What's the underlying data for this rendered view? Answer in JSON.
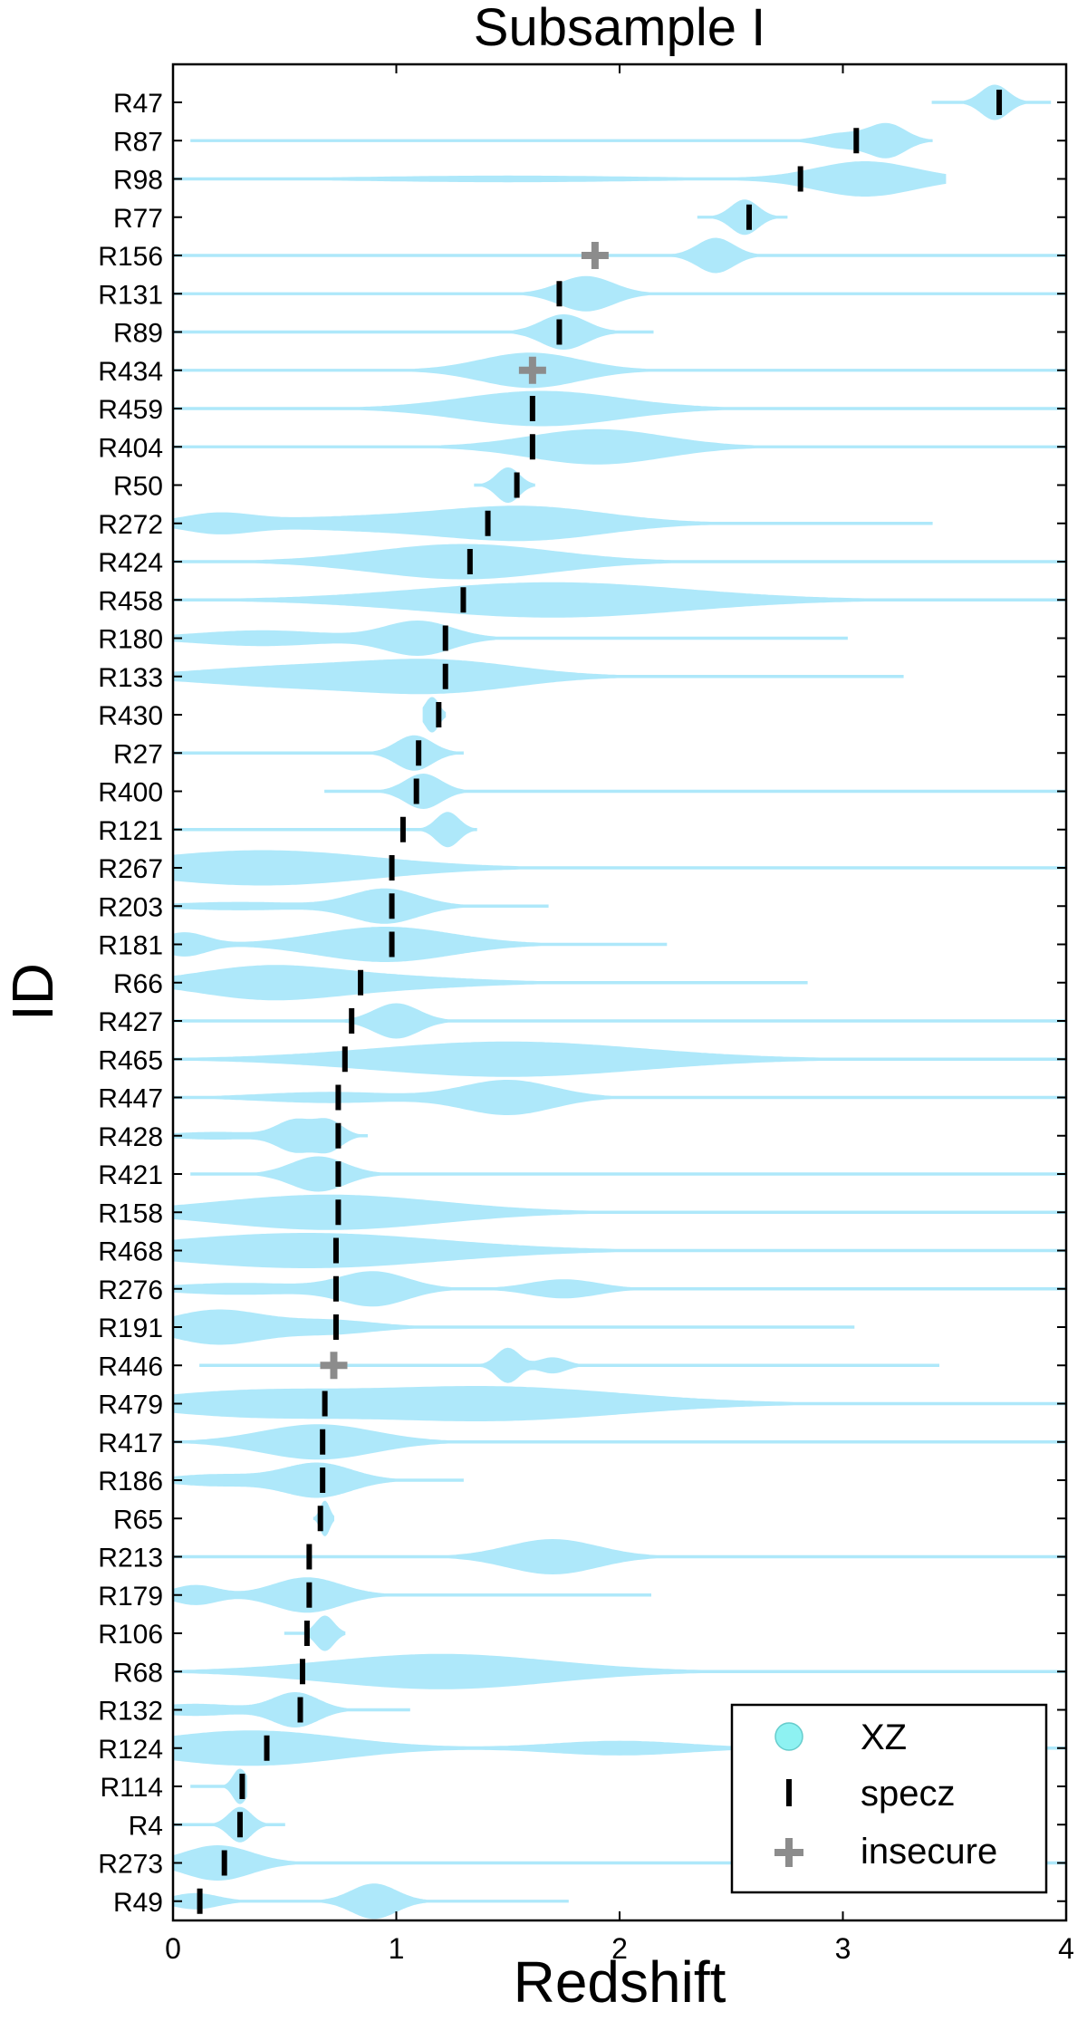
{
  "chart_data": {
    "type": "violin",
    "title": "Subsample I",
    "xlabel": "Redshift",
    "ylabel": "ID",
    "xlim": [
      0,
      4
    ],
    "xticks": [
      0,
      1,
      2,
      3,
      4
    ],
    "grid": false,
    "legend": {
      "placement": "bottom-right",
      "entries": [
        {
          "label": "XZ",
          "marker": "circle",
          "color": "#8ef2f2"
        },
        {
          "label": "specz",
          "marker": "vertical-bar",
          "color": "#000000"
        },
        {
          "label": "insecure",
          "marker": "plus",
          "color": "#8c8c8c"
        }
      ]
    },
    "colors": {
      "violin_fill": "#aee8fa",
      "violin_line": "#aee8fa",
      "specz": "#000000",
      "insecure": "#8c8c8c"
    },
    "objects": [
      {
        "id": "R47",
        "z": 3.7,
        "flag": "specz",
        "range": [
          3.4,
          3.93
        ],
        "bumps": [
          [
            3.68,
            0.06,
            9
          ]
        ]
      },
      {
        "id": "R87",
        "z": 3.06,
        "flag": "specz",
        "range": [
          0.08,
          3.4
        ],
        "bumps": [
          [
            3.2,
            0.08,
            9
          ],
          [
            3.0,
            0.1,
            4
          ]
        ]
      },
      {
        "id": "R98",
        "z": 2.81,
        "flag": "specz",
        "range": [
          0.0,
          3.46
        ],
        "bumps": [
          [
            3.1,
            0.22,
            9
          ],
          [
            1.5,
            0.6,
            1.5
          ]
        ]
      },
      {
        "id": "R77",
        "z": 2.58,
        "flag": "specz",
        "range": [
          2.35,
          2.75
        ],
        "bumps": [
          [
            2.56,
            0.06,
            9
          ]
        ]
      },
      {
        "id": "R156",
        "z": 1.89,
        "flag": "insecure",
        "range": [
          0.0,
          4.0
        ],
        "bumps": [
          [
            2.43,
            0.08,
            9
          ]
        ]
      },
      {
        "id": "R131",
        "z": 1.73,
        "flag": "specz",
        "range": [
          0.0,
          4.0
        ],
        "bumps": [
          [
            1.85,
            0.12,
            10
          ]
        ]
      },
      {
        "id": "R89",
        "z": 1.73,
        "flag": "specz",
        "range": [
          0.0,
          2.15
        ],
        "bumps": [
          [
            1.75,
            0.1,
            9
          ]
        ]
      },
      {
        "id": "R434",
        "z": 1.61,
        "flag": "insecure",
        "range": [
          0.0,
          4.0
        ],
        "bumps": [
          [
            1.6,
            0.22,
            10
          ]
        ]
      },
      {
        "id": "R459",
        "z": 1.61,
        "flag": "specz",
        "range": [
          0.0,
          4.0
        ],
        "bumps": [
          [
            1.65,
            0.35,
            10
          ]
        ]
      },
      {
        "id": "R404",
        "z": 1.61,
        "flag": "specz",
        "range": [
          0.0,
          4.0
        ],
        "bumps": [
          [
            1.9,
            0.3,
            10
          ]
        ]
      },
      {
        "id": "R50",
        "z": 1.54,
        "flag": "specz",
        "range": [
          1.35,
          1.62
        ],
        "bumps": [
          [
            1.5,
            0.05,
            9
          ]
        ]
      },
      {
        "id": "R272",
        "z": 1.41,
        "flag": "specz",
        "range": [
          0.0,
          3.4
        ],
        "bumps": [
          [
            1.6,
            0.35,
            9
          ],
          [
            0.9,
            0.5,
            4
          ],
          [
            0.2,
            0.15,
            5
          ]
        ]
      },
      {
        "id": "R424",
        "z": 1.33,
        "flag": "specz",
        "range": [
          0.0,
          4.0
        ],
        "bumps": [
          [
            1.3,
            0.4,
            10
          ]
        ]
      },
      {
        "id": "R458",
        "z": 1.3,
        "flag": "specz",
        "range": [
          0.0,
          4.0
        ],
        "bumps": [
          [
            1.7,
            0.6,
            10
          ]
        ]
      },
      {
        "id": "R180",
        "z": 1.22,
        "flag": "specz",
        "range": [
          0.0,
          3.02
        ],
        "bumps": [
          [
            1.1,
            0.15,
            9
          ],
          [
            0.4,
            0.3,
            4
          ]
        ]
      },
      {
        "id": "R133",
        "z": 1.22,
        "flag": "specz",
        "range": [
          0.0,
          3.27
        ],
        "bumps": [
          [
            1.2,
            0.35,
            8
          ],
          [
            0.5,
            0.4,
            5
          ]
        ]
      },
      {
        "id": "R430",
        "z": 1.19,
        "flag": "specz",
        "range": [
          1.12,
          1.22
        ],
        "bumps": [
          [
            1.16,
            0.03,
            8
          ]
        ]
      },
      {
        "id": "R27",
        "z": 1.1,
        "flag": "specz",
        "range": [
          0.0,
          1.3
        ],
        "bumps": [
          [
            1.08,
            0.08,
            9
          ]
        ]
      },
      {
        "id": "R400",
        "z": 1.09,
        "flag": "specz",
        "range": [
          0.68,
          4.0
        ],
        "bumps": [
          [
            1.12,
            0.08,
            10
          ]
        ]
      },
      {
        "id": "R121",
        "z": 1.03,
        "flag": "specz",
        "range": [
          0.0,
          1.36
        ],
        "bumps": [
          [
            1.23,
            0.05,
            9
          ]
        ]
      },
      {
        "id": "R267",
        "z": 0.98,
        "flag": "specz",
        "range": [
          0.0,
          4.0
        ],
        "bumps": [
          [
            0.4,
            0.5,
            10
          ]
        ]
      },
      {
        "id": "R203",
        "z": 0.98,
        "flag": "specz",
        "range": [
          0.0,
          1.68
        ],
        "bumps": [
          [
            0.95,
            0.15,
            9
          ],
          [
            0.3,
            0.3,
            2
          ]
        ]
      },
      {
        "id": "R181",
        "z": 0.98,
        "flag": "specz",
        "range": [
          0.0,
          2.21
        ],
        "bumps": [
          [
            0.95,
            0.3,
            9
          ],
          [
            0.05,
            0.1,
            6
          ]
        ]
      },
      {
        "id": "R66",
        "z": 0.84,
        "flag": "specz",
        "range": [
          0.0,
          2.84
        ],
        "bumps": [
          [
            0.4,
            0.3,
            9
          ],
          [
            0.9,
            0.4,
            4
          ]
        ]
      },
      {
        "id": "R427",
        "z": 0.8,
        "flag": "specz",
        "range": [
          0.0,
          4.0
        ],
        "bumps": [
          [
            1.0,
            0.1,
            9
          ]
        ]
      },
      {
        "id": "R465",
        "z": 0.77,
        "flag": "specz",
        "range": [
          0.0,
          4.0
        ],
        "bumps": [
          [
            1.5,
            0.6,
            10
          ]
        ]
      },
      {
        "id": "R447",
        "z": 0.74,
        "flag": "specz",
        "range": [
          0.0,
          4.0
        ],
        "bumps": [
          [
            1.5,
            0.2,
            10
          ],
          [
            0.7,
            0.3,
            3
          ]
        ]
      },
      {
        "id": "R428",
        "z": 0.74,
        "flag": "specz",
        "range": [
          0.0,
          0.87
        ],
        "bumps": [
          [
            0.55,
            0.08,
            9
          ],
          [
            0.7,
            0.06,
            8
          ],
          [
            0.2,
            0.2,
            2
          ]
        ]
      },
      {
        "id": "R421",
        "z": 0.74,
        "flag": "specz",
        "range": [
          0.08,
          4.0
        ],
        "bumps": [
          [
            0.65,
            0.12,
            10
          ]
        ]
      },
      {
        "id": "R158",
        "z": 0.74,
        "flag": "specz",
        "range": [
          0.0,
          4.0
        ],
        "bumps": [
          [
            0.7,
            0.5,
            10
          ]
        ]
      },
      {
        "id": "R468",
        "z": 0.73,
        "flag": "specz",
        "range": [
          0.0,
          4.0
        ],
        "bumps": [
          [
            0.6,
            0.6,
            10
          ]
        ]
      },
      {
        "id": "R276",
        "z": 0.73,
        "flag": "specz",
        "range": [
          0.0,
          4.0
        ],
        "bumps": [
          [
            0.9,
            0.15,
            9
          ],
          [
            1.75,
            0.15,
            5
          ],
          [
            0.3,
            0.3,
            3
          ]
        ]
      },
      {
        "id": "R191",
        "z": 0.73,
        "flag": "specz",
        "range": [
          0.0,
          3.05
        ],
        "bumps": [
          [
            0.2,
            0.2,
            10
          ],
          [
            0.7,
            0.2,
            4
          ]
        ]
      },
      {
        "id": "R446",
        "z": 0.72,
        "flag": "insecure",
        "range": [
          0.12,
          3.43
        ],
        "bumps": [
          [
            1.5,
            0.05,
            9
          ],
          [
            1.7,
            0.06,
            4
          ]
        ]
      },
      {
        "id": "R479",
        "z": 0.68,
        "flag": "specz",
        "range": [
          0.0,
          4.0
        ],
        "bumps": [
          [
            1.4,
            0.6,
            10
          ],
          [
            0.3,
            0.4,
            6
          ]
        ]
      },
      {
        "id": "R417",
        "z": 0.67,
        "flag": "specz",
        "range": [
          0.0,
          4.0
        ],
        "bumps": [
          [
            0.65,
            0.25,
            10
          ]
        ]
      },
      {
        "id": "R186",
        "z": 0.67,
        "flag": "specz",
        "range": [
          0.0,
          1.3
        ],
        "bumps": [
          [
            0.65,
            0.15,
            9
          ],
          [
            0.2,
            0.2,
            3
          ]
        ]
      },
      {
        "id": "R65",
        "z": 0.66,
        "flag": "specz",
        "range": [
          0.63,
          0.72
        ],
        "bumps": [
          [
            0.68,
            0.02,
            7
          ]
        ]
      },
      {
        "id": "R213",
        "z": 0.61,
        "flag": "specz",
        "range": [
          0.0,
          4.0
        ],
        "bumps": [
          [
            1.7,
            0.2,
            10
          ]
        ]
      },
      {
        "id": "R179",
        "z": 0.61,
        "flag": "specz",
        "range": [
          0.0,
          2.14
        ],
        "bumps": [
          [
            0.6,
            0.15,
            9
          ],
          [
            0.1,
            0.1,
            5
          ]
        ]
      },
      {
        "id": "R106",
        "z": 0.6,
        "flag": "specz",
        "range": [
          0.5,
          0.77
        ],
        "bumps": [
          [
            0.68,
            0.04,
            9
          ]
        ]
      },
      {
        "id": "R68",
        "z": 0.58,
        "flag": "specz",
        "range": [
          0.0,
          4.0
        ],
        "bumps": [
          [
            1.2,
            0.5,
            10
          ]
        ]
      },
      {
        "id": "R132",
        "z": 0.57,
        "flag": "specz",
        "range": [
          0.0,
          1.06
        ],
        "bumps": [
          [
            0.55,
            0.1,
            9
          ],
          [
            0.1,
            0.2,
            3
          ]
        ]
      },
      {
        "id": "R124",
        "z": 0.42,
        "flag": "specz",
        "range": [
          0.0,
          4.0
        ],
        "bumps": [
          [
            0.35,
            0.4,
            10
          ],
          [
            2.0,
            0.3,
            4
          ]
        ]
      },
      {
        "id": "R114",
        "z": 0.31,
        "flag": "specz",
        "range": [
          0.08,
          0.33
        ],
        "bumps": [
          [
            0.3,
            0.03,
            7
          ]
        ]
      },
      {
        "id": "R4",
        "z": 0.3,
        "flag": "specz",
        "range": [
          0.0,
          0.5
        ],
        "bumps": [
          [
            0.3,
            0.05,
            8
          ]
        ]
      },
      {
        "id": "R273",
        "z": 0.23,
        "flag": "specz",
        "range": [
          0.0,
          4.0
        ],
        "bumps": [
          [
            0.2,
            0.15,
            10
          ]
        ]
      },
      {
        "id": "R49",
        "z": 0.12,
        "flag": "specz",
        "range": [
          0.0,
          1.77
        ],
        "bumps": [
          [
            0.9,
            0.1,
            9
          ],
          [
            0.1,
            0.1,
            4
          ]
        ]
      }
    ]
  }
}
